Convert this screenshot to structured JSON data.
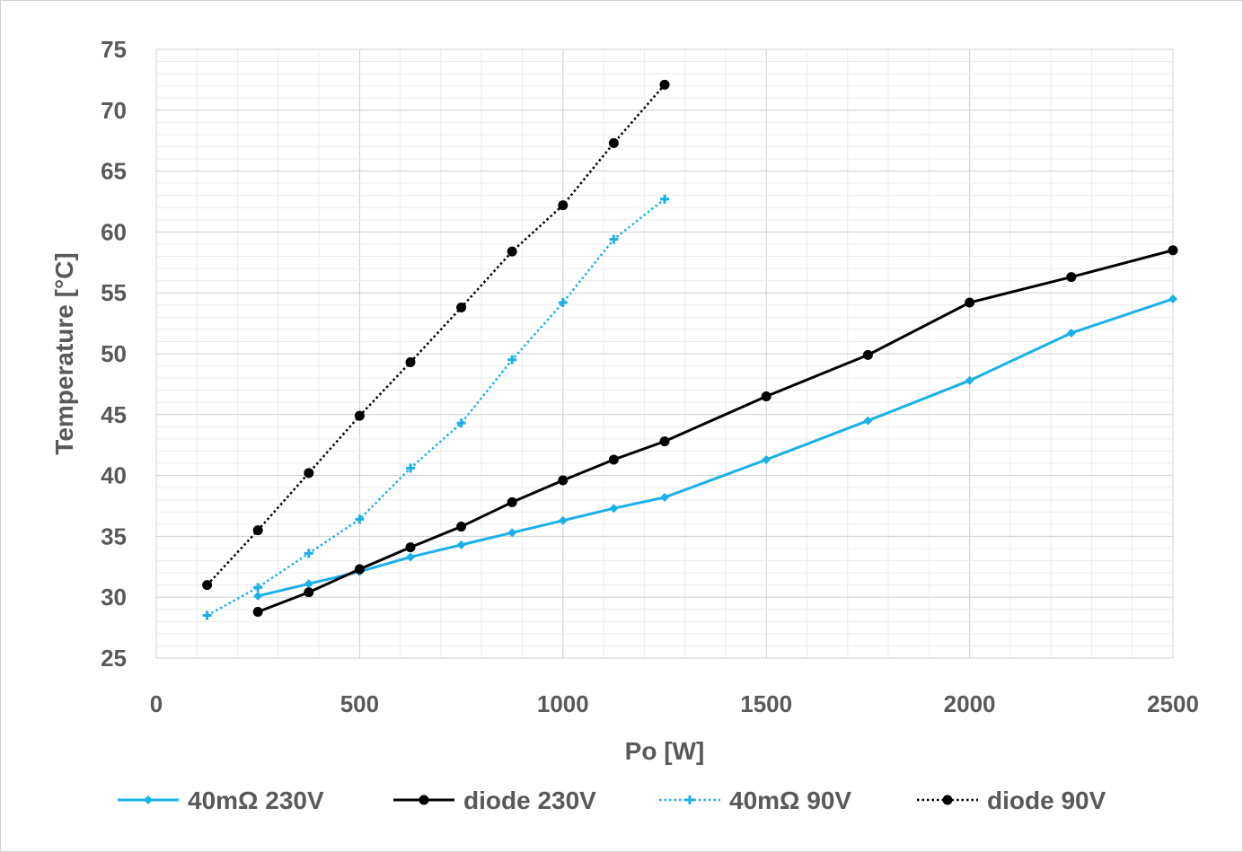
{
  "chart_data": {
    "type": "line",
    "xlabel": "Po [W]",
    "ylabel": "Temperature [°C]",
    "xlim": [
      0,
      2500
    ],
    "ylim": [
      25,
      75
    ],
    "xticks": [
      0,
      500,
      1000,
      1500,
      2000,
      2500
    ],
    "yticks": [
      25,
      30,
      35,
      40,
      45,
      50,
      55,
      60,
      65,
      70,
      75
    ],
    "grid": true,
    "legend_position": "bottom",
    "series": [
      {
        "name": "40mΩ 230V",
        "color": "#1ab0e8",
        "line": "solid",
        "marker": "diamond",
        "x": [
          250,
          375,
          500,
          625,
          750,
          875,
          1000,
          1125,
          1250,
          1500,
          1750,
          2000,
          2250,
          2500
        ],
        "y": [
          30.1,
          31.1,
          32.1,
          33.3,
          34.3,
          35.3,
          36.3,
          37.3,
          38.2,
          41.3,
          44.5,
          47.8,
          51.7,
          54.5
        ]
      },
      {
        "name": "diode 230V",
        "color": "#000000",
        "line": "solid",
        "marker": "circle",
        "x": [
          250,
          375,
          500,
          625,
          750,
          875,
          1000,
          1125,
          1250,
          1500,
          1750,
          2000,
          2250,
          2500
        ],
        "y": [
          28.8,
          30.4,
          32.3,
          34.1,
          35.8,
          37.8,
          39.6,
          41.3,
          42.8,
          46.5,
          49.9,
          54.2,
          56.3,
          58.5
        ]
      },
      {
        "name": "40mΩ 90V",
        "color": "#1ab0e8",
        "line": "dotted",
        "marker": "plus",
        "x": [
          125,
          250,
          375,
          500,
          625,
          750,
          875,
          1000,
          1125,
          1250
        ],
        "y": [
          28.5,
          30.8,
          33.6,
          36.4,
          40.6,
          44.3,
          49.5,
          54.2,
          59.4,
          62.7
        ]
      },
      {
        "name": "diode 90V",
        "color": "#000000",
        "line": "dotted",
        "marker": "circle",
        "x": [
          125,
          250,
          375,
          500,
          625,
          750,
          875,
          1000,
          1125,
          1250
        ],
        "y": [
          31.0,
          35.5,
          40.2,
          44.9,
          49.3,
          53.8,
          58.4,
          62.2,
          67.3,
          72.1
        ]
      }
    ]
  }
}
